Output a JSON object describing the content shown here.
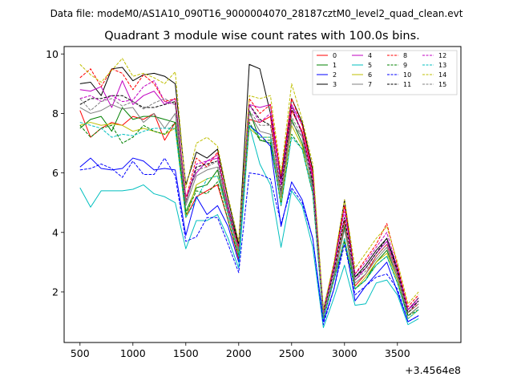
{
  "chart_data": {
    "type": "line",
    "supertitle": "Data file: modeM0/AS1A10_090T16_9000004070_28187cztM0_level2_quad_clean.evt",
    "title": "Quadrant 3 module wise count rates with 100.0s bins.",
    "xlabel": "",
    "ylabel": "",
    "x_offset_label": "+3.4564e8",
    "xlim": [
      345640350,
      345644100
    ],
    "ylim": [
      0.3,
      10.25
    ],
    "x_ticks": [
      345640500,
      345641000,
      345641500,
      345642000,
      345642500,
      345643000,
      345643500
    ],
    "x_tick_labels": [
      "500",
      "1000",
      "1500",
      "2000",
      "2500",
      "3000",
      "3500"
    ],
    "y_ticks": [
      2,
      4,
      6,
      8,
      10
    ],
    "y_tick_labels": [
      "2",
      "4",
      "6",
      "8",
      "10"
    ],
    "grid": false,
    "legend_position": "upper-right",
    "x": [
      345640500,
      345640600,
      345640700,
      345640800,
      345640900,
      345641000,
      345641100,
      345641200,
      345641300,
      345641400,
      345641500,
      345641600,
      345641700,
      345641800,
      345641900,
      345642000,
      345642100,
      345642200,
      345642300,
      345642400,
      345642500,
      345642600,
      345642700,
      345642800,
      345642900,
      345643000,
      345643100,
      345643200,
      345643300,
      345643400,
      345643500,
      345643600,
      345643700
    ],
    "series": [
      {
        "name": "0",
        "color": "#ff0000",
        "dashed": false,
        "values": [
          8.1,
          7.2,
          7.5,
          7.7,
          7.6,
          7.9,
          7.8,
          8.0,
          7.1,
          7.7,
          4.5,
          5.2,
          5.4,
          5.6,
          4.4,
          3.1,
          7.8,
          7.7,
          7.9,
          5.2,
          8.1,
          7.4,
          5.8,
          1.2,
          2.5,
          4.4,
          2.2,
          2.6,
          3.2,
          3.6,
          2.6,
          1.3,
          1.6
        ]
      },
      {
        "name": "1",
        "color": "#008000",
        "dashed": false,
        "values": [
          7.5,
          7.8,
          7.9,
          7.4,
          8.2,
          7.8,
          7.9,
          7.9,
          7.8,
          7.7,
          4.7,
          5.5,
          5.6,
          6.1,
          4.6,
          3.3,
          8.1,
          7.1,
          7.0,
          5.0,
          7.8,
          7.0,
          5.6,
          1.1,
          2.4,
          4.2,
          2.1,
          2.4,
          3.0,
          3.4,
          2.5,
          1.2,
          1.5
        ]
      },
      {
        "name": "2",
        "color": "#0000ff",
        "dashed": false,
        "values": [
          6.2,
          6.5,
          6.15,
          6.1,
          6.15,
          6.5,
          6.4,
          6.1,
          6.15,
          6.1,
          3.9,
          5.2,
          4.6,
          4.9,
          4.2,
          3.0,
          7.6,
          7.3,
          6.9,
          4.2,
          5.7,
          5.1,
          3.8,
          1.0,
          2.1,
          3.8,
          1.7,
          2.2,
          2.6,
          3.0,
          2.0,
          1.0,
          1.2
        ]
      },
      {
        "name": "3",
        "color": "#000000",
        "dashed": false,
        "values": [
          9.0,
          9.05,
          8.6,
          9.5,
          9.55,
          9.1,
          9.3,
          9.35,
          9.25,
          9.0,
          5.6,
          6.7,
          6.5,
          6.8,
          5.1,
          3.6,
          9.65,
          9.5,
          8.0,
          5.8,
          8.5,
          7.7,
          6.1,
          1.4,
          2.9,
          5.1,
          2.5,
          2.9,
          3.4,
          3.8,
          2.8,
          1.4,
          1.8
        ]
      },
      {
        "name": "4",
        "color": "#c000c0",
        "dashed": false,
        "values": [
          8.8,
          8.75,
          8.9,
          8.2,
          9.1,
          8.3,
          8.6,
          8.75,
          8.3,
          8.5,
          5.2,
          6.0,
          6.4,
          6.5,
          4.9,
          3.5,
          8.3,
          8.2,
          8.3,
          5.6,
          8.3,
          7.6,
          5.9,
          1.3,
          2.8,
          4.9,
          2.4,
          2.8,
          3.3,
          3.7,
          2.7,
          1.4,
          1.7
        ]
      },
      {
        "name": "5",
        "color": "#00bfbf",
        "dashed": false,
        "values": [
          5.5,
          4.85,
          5.4,
          5.4,
          5.4,
          5.45,
          5.6,
          5.3,
          5.2,
          5.0,
          3.45,
          4.4,
          4.4,
          4.6,
          3.8,
          2.8,
          7.6,
          6.3,
          5.6,
          3.5,
          5.4,
          4.9,
          3.5,
          0.8,
          1.8,
          2.9,
          1.55,
          1.6,
          2.3,
          2.4,
          1.9,
          0.9,
          1.1
        ]
      },
      {
        "name": "6",
        "color": "#bfbf00",
        "dashed": false,
        "values": [
          7.6,
          7.7,
          7.6,
          7.65,
          7.6,
          7.4,
          7.5,
          7.4,
          7.3,
          7.5,
          4.5,
          5.6,
          5.8,
          5.9,
          4.6,
          3.3,
          7.5,
          7.2,
          7.2,
          5.0,
          7.6,
          6.9,
          5.3,
          1.1,
          2.4,
          3.8,
          2.1,
          2.5,
          3.0,
          3.3,
          2.4,
          1.1,
          1.4
        ]
      },
      {
        "name": "7",
        "color": "#808080",
        "dashed": false,
        "values": [
          8.2,
          8.0,
          8.1,
          8.3,
          8.15,
          8.2,
          7.7,
          8.0,
          7.5,
          8.0,
          4.9,
          5.9,
          6.1,
          6.2,
          4.7,
          3.4,
          8.0,
          7.4,
          7.3,
          5.2,
          7.7,
          7.2,
          5.4,
          1.2,
          2.5,
          4.1,
          2.3,
          2.6,
          3.1,
          3.5,
          2.5,
          1.2,
          1.5
        ]
      },
      {
        "name": "8",
        "color": "#ff0000",
        "dashed": true,
        "values": [
          9.2,
          9.5,
          8.9,
          9.5,
          9.35,
          8.8,
          9.3,
          9.0,
          8.4,
          8.5,
          5.1,
          6.5,
          6.2,
          6.7,
          4.8,
          3.5,
          8.5,
          8.0,
          8.3,
          5.9,
          8.5,
          7.6,
          6.0,
          1.3,
          2.9,
          4.9,
          2.6,
          3.1,
          3.6,
          4.3,
          2.9,
          1.5,
          1.9
        ]
      },
      {
        "name": "9",
        "color": "#008000",
        "dashed": true,
        "values": [
          7.6,
          7.2,
          7.5,
          7.6,
          7.0,
          7.2,
          7.6,
          7.4,
          7.3,
          7.7,
          4.6,
          5.4,
          5.3,
          5.7,
          4.4,
          3.2,
          7.7,
          7.1,
          7.1,
          4.9,
          7.3,
          6.8,
          5.3,
          1.1,
          2.4,
          3.7,
          2.1,
          2.4,
          2.9,
          3.2,
          2.3,
          1.2,
          1.4
        ]
      },
      {
        "name": "10",
        "color": "#0000ff",
        "dashed": true,
        "values": [
          6.1,
          6.15,
          6.3,
          6.15,
          5.85,
          6.4,
          5.95,
          5.95,
          6.5,
          5.9,
          3.7,
          3.85,
          4.5,
          4.5,
          3.6,
          2.65,
          6.0,
          5.95,
          5.8,
          4.3,
          5.5,
          5.0,
          3.8,
          0.9,
          2.1,
          3.6,
          1.9,
          2.2,
          2.5,
          2.6,
          2.1,
          1.0,
          1.2
        ]
      },
      {
        "name": "11",
        "color": "#000000",
        "dashed": true,
        "values": [
          8.3,
          8.5,
          8.5,
          8.6,
          8.6,
          8.4,
          8.2,
          8.2,
          8.3,
          8.4,
          5.0,
          6.2,
          6.3,
          6.4,
          4.8,
          3.6,
          8.3,
          7.8,
          7.6,
          5.4,
          8.2,
          7.3,
          5.7,
          1.3,
          2.7,
          4.5,
          2.5,
          2.8,
          3.3,
          3.8,
          2.7,
          1.3,
          1.7
        ]
      },
      {
        "name": "12",
        "color": "#c000c0",
        "dashed": true,
        "values": [
          8.5,
          8.6,
          8.4,
          8.6,
          8.4,
          8.45,
          8.9,
          9.1,
          8.4,
          8.3,
          5.0,
          6.3,
          6.4,
          6.6,
          4.7,
          3.4,
          8.3,
          7.7,
          8.0,
          5.6,
          8.3,
          7.3,
          5.8,
          1.3,
          2.8,
          4.7,
          2.6,
          3.0,
          3.5,
          4.0,
          2.8,
          1.4,
          1.8
        ]
      },
      {
        "name": "13",
        "color": "#00bfbf",
        "dashed": true,
        "values": [
          7.7,
          7.6,
          7.5,
          7.2,
          7.3,
          7.25,
          7.4,
          7.5,
          7.5,
          7.5,
          4.5,
          5.1,
          5.8,
          5.9,
          4.6,
          3.2,
          7.6,
          7.2,
          7.2,
          4.9,
          7.2,
          6.8,
          5.3,
          1.1,
          2.4,
          3.8,
          2.1,
          2.4,
          2.9,
          3.2,
          2.3,
          1.1,
          1.4
        ]
      },
      {
        "name": "14",
        "color": "#bfbf00",
        "dashed": true,
        "values": [
          9.65,
          9.3,
          9.05,
          9.45,
          9.85,
          9.25,
          9.35,
          9.2,
          9.0,
          9.4,
          5.5,
          7.0,
          7.2,
          6.9,
          5.2,
          3.7,
          8.6,
          8.5,
          8.6,
          6.0,
          9.0,
          7.8,
          6.3,
          1.4,
          3.0,
          5.1,
          2.8,
          3.3,
          3.8,
          4.2,
          3.0,
          1.6,
          2.0
        ]
      },
      {
        "name": "15",
        "color": "#808080",
        "dashed": true,
        "values": [
          8.5,
          8.1,
          8.4,
          8.5,
          8.25,
          8.4,
          8.15,
          8.35,
          8.5,
          8.3,
          5.0,
          6.1,
          6.2,
          6.4,
          4.8,
          3.4,
          8.1,
          7.6,
          7.6,
          5.3,
          7.9,
          7.2,
          5.5,
          1.2,
          2.6,
          4.3,
          2.4,
          2.7,
          3.2,
          3.6,
          2.6,
          1.3,
          1.6
        ]
      }
    ]
  }
}
